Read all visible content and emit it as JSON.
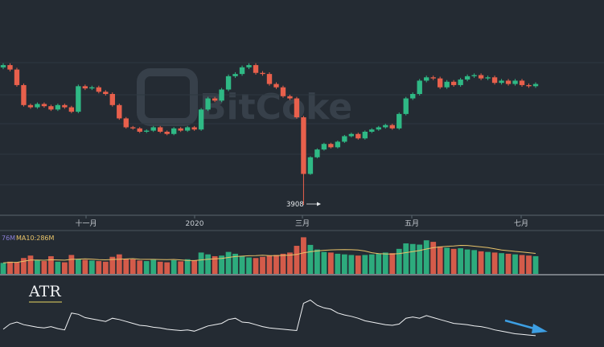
{
  "chart_data": [
    {
      "type": "candlestick",
      "watermark": "BitCoke",
      "x_ticks": [
        "十一月",
        "2020",
        "三月",
        "五月",
        "七月"
      ],
      "annotation": "3908",
      "grid": true,
      "colors": {
        "up": "#2fb985",
        "down": "#e8604c"
      },
      "close": [
        10200,
        10000,
        9300,
        8400,
        8300,
        8450,
        8350,
        8200,
        8400,
        8300,
        8100,
        9250,
        9150,
        9200,
        9000,
        8900,
        8400,
        7800,
        7400,
        7350,
        7200,
        7250,
        7400,
        7200,
        7100,
        7350,
        7250,
        7400,
        7300,
        8200,
        8700,
        8600,
        9100,
        9700,
        9800,
        10100,
        10200,
        9850,
        9800,
        9350,
        9200,
        8800,
        8700,
        7850,
        5300,
        6050,
        6400,
        6650,
        6500,
        6750,
        7000,
        7100,
        6900,
        7200,
        7300,
        7400,
        7500,
        7350,
        8000,
        8700,
        8900,
        9500,
        9650,
        9600,
        9200,
        9450,
        9300,
        9550,
        9700,
        9750,
        9600,
        9650,
        9400,
        9500,
        9350,
        9500,
        9300,
        9250,
        9350
      ]
    },
    {
      "type": "bar",
      "legend": [
        "76M",
        "MA10:286M"
      ],
      "legend_colors": [
        "#8b7fd6",
        "#e9c46a"
      ],
      "volume": [
        36,
        40,
        38,
        52,
        60,
        45,
        42,
        58,
        40,
        38,
        62,
        48,
        46,
        44,
        42,
        40,
        56,
        64,
        50,
        48,
        44,
        42,
        46,
        40,
        38,
        45,
        41,
        48,
        44,
        70,
        64,
        58,
        60,
        72,
        66,
        58,
        54,
        52,
        56,
        60,
        62,
        66,
        70,
        92,
        120,
        95,
        80,
        72,
        70,
        66,
        64,
        62,
        60,
        62,
        64,
        66,
        70,
        68,
        82,
        100,
        98,
        96,
        110,
        105,
        90,
        86,
        82,
        84,
        80,
        78,
        74,
        72,
        70,
        68,
        66,
        64,
        62,
        60,
        58
      ]
    },
    {
      "type": "line",
      "title": "ATR",
      "color": "#f0f2f4",
      "values": [
        250,
        330,
        360,
        320,
        300,
        280,
        270,
        290,
        260,
        240,
        500,
        480,
        430,
        410,
        390,
        370,
        420,
        400,
        370,
        340,
        310,
        300,
        280,
        270,
        250,
        240,
        230,
        240,
        220,
        260,
        300,
        320,
        340,
        400,
        420,
        360,
        350,
        320,
        290,
        270,
        260,
        250,
        240,
        230,
        650,
        700,
        620,
        580,
        560,
        500,
        470,
        450,
        420,
        380,
        360,
        340,
        320,
        310,
        330,
        420,
        440,
        420,
        460,
        430,
        400,
        370,
        340,
        330,
        320,
        300,
        290,
        270,
        240,
        220,
        200,
        180,
        170,
        160,
        150
      ],
      "arrow_color": "#3d9fe3"
    }
  ]
}
